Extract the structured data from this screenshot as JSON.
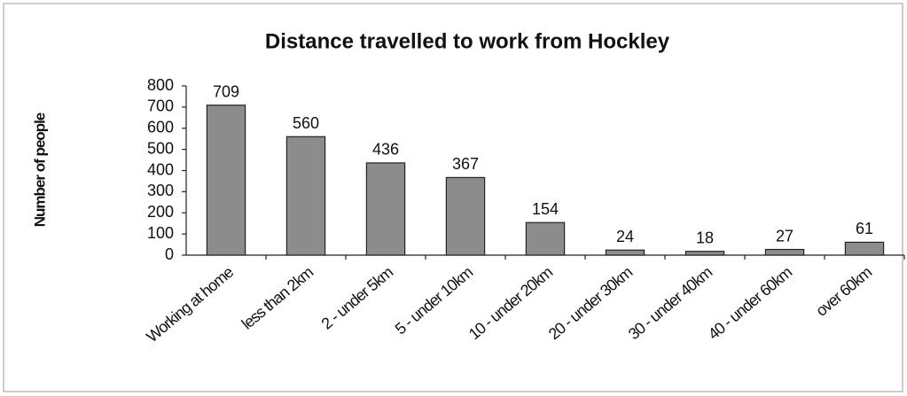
{
  "chart_data": {
    "type": "bar",
    "title": "Distance travelled to work from Hockley",
    "y_label": "Number of people",
    "categories": [
      "Working at home",
      "less than 2km",
      "2 - under 5km",
      "5 - under 10km",
      "10 - under 20km",
      "20 - under 30km",
      "30 - under 40km",
      "40 - under 60km",
      "over 60km"
    ],
    "values": [
      709,
      560,
      436,
      367,
      154,
      24,
      18,
      27,
      61
    ],
    "color": "#8c8c8c",
    "ylim": [
      0,
      800
    ],
    "yticks": [
      0,
      100,
      200,
      300,
      400,
      500,
      600,
      700,
      800
    ],
    "grid": false
  }
}
